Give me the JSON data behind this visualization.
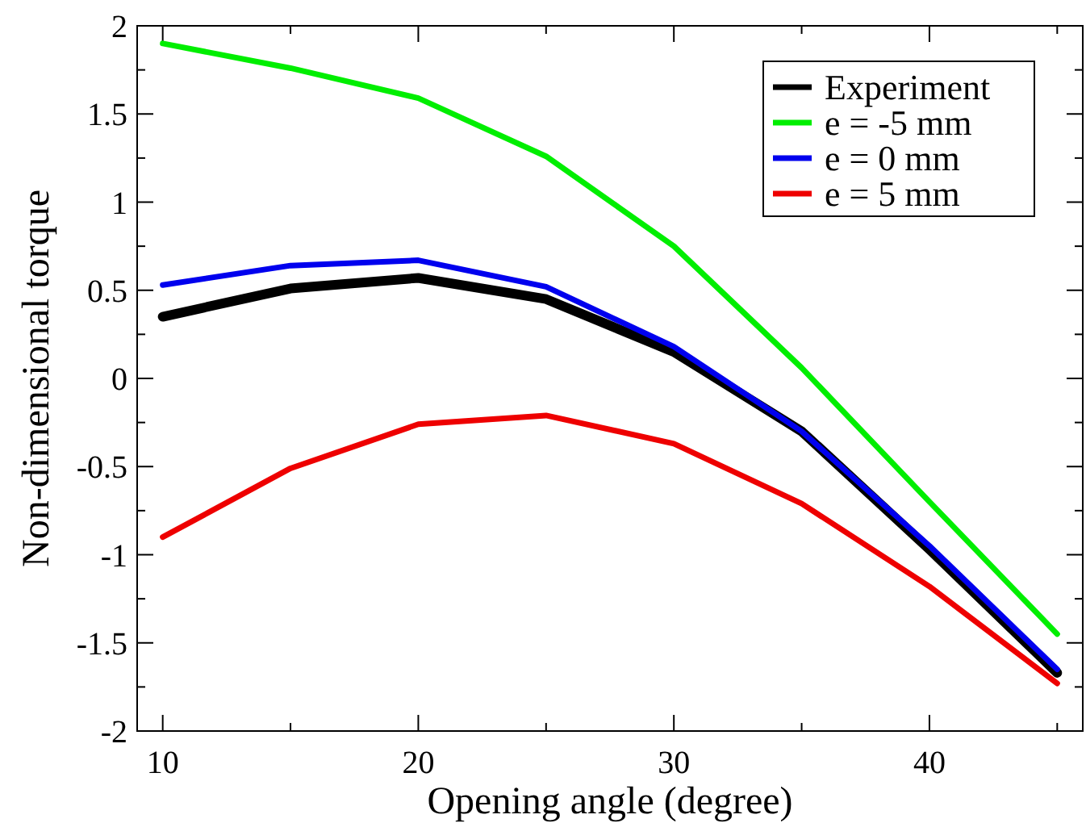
{
  "chart_data": {
    "type": "line",
    "xlabel": "Opening angle (degree)",
    "ylabel": "Non-dimensional torque",
    "x": [
      10,
      15,
      20,
      25,
      30,
      35,
      40,
      45
    ],
    "series": [
      {
        "name": "Experiment",
        "color": "#000000",
        "values": [
          0.35,
          0.51,
          0.57,
          0.45,
          0.15,
          -0.3,
          -0.97,
          -1.67
        ]
      },
      {
        "name": "e = -5 mm",
        "color": "#00ee00",
        "values": [
          1.9,
          1.76,
          1.59,
          1.26,
          0.75,
          0.06,
          -0.7,
          -1.45
        ]
      },
      {
        "name": "e = 0 mm",
        "color": "#0000ee",
        "values": [
          0.53,
          0.64,
          0.67,
          0.52,
          0.18,
          -0.3,
          -0.95,
          -1.65
        ]
      },
      {
        "name": "e = 5 mm",
        "color": "#ee0000",
        "values": [
          -0.9,
          -0.51,
          -0.26,
          -0.21,
          -0.37,
          -0.71,
          -1.18,
          -1.73
        ]
      }
    ],
    "xlim": [
      9,
      46
    ],
    "xticks": [
      10,
      {
        "value": 15,
        "label": null
      },
      20,
      {
        "value": 25,
        "label": null
      },
      30,
      {
        "value": 35,
        "label": null
      },
      40,
      {
        "value": 45,
        "label": null
      }
    ],
    "ylim": [
      -2,
      2
    ],
    "yticks": [
      -2,
      {
        "value": -1.75,
        "label": null
      },
      -1.5,
      {
        "value": -1.25,
        "label": null
      },
      -1,
      {
        "value": -0.75,
        "label": null
      },
      -0.5,
      {
        "value": -0.25,
        "label": null
      },
      0,
      {
        "value": 0.25,
        "label": null
      },
      0.5,
      {
        "value": 0.75,
        "label": null
      },
      1,
      {
        "value": 1.25,
        "label": null
      },
      1.5,
      {
        "value": 1.75,
        "label": null
      },
      2
    ],
    "legend": "top right",
    "grid": false,
    "marker": "none",
    "line_style": "solid"
  }
}
